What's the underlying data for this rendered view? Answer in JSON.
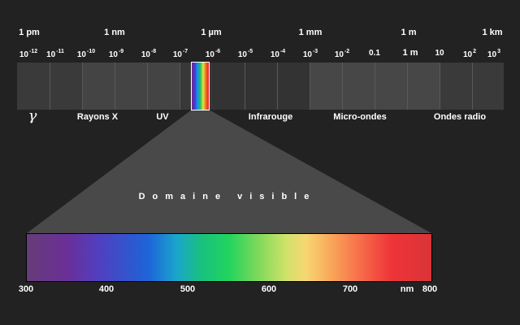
{
  "units": [
    {
      "id": "pm",
      "label": "1 pm"
    },
    {
      "id": "nm",
      "label": "1 nm"
    },
    {
      "id": "um",
      "label": "1 µm"
    },
    {
      "id": "mm",
      "label": "1 mm"
    },
    {
      "id": "m",
      "label": "1 m"
    },
    {
      "id": "km",
      "label": "1 km"
    }
  ],
  "exponents": {
    "e12": {
      "base": "10",
      "exp": "-12"
    },
    "e11": {
      "base": "10",
      "exp": "-11"
    },
    "e10": {
      "base": "10",
      "exp": "-10"
    },
    "e9": {
      "base": "10",
      "exp": "-9"
    },
    "e8": {
      "base": "10",
      "exp": "-8"
    },
    "e7": {
      "base": "10",
      "exp": "-7"
    },
    "e6": {
      "base": "10",
      "exp": "-6"
    },
    "e5": {
      "base": "10",
      "exp": "-5"
    },
    "e4": {
      "base": "10",
      "exp": "-4"
    },
    "e3": {
      "base": "10",
      "exp": "-3"
    },
    "e2": {
      "base": "10",
      "exp": "-2"
    },
    "e1": {
      "base": "0.1"
    },
    "e0": {
      "base": "1 m"
    },
    "p1": {
      "base": "10"
    },
    "p2": {
      "base": "10",
      "exp": "2"
    },
    "p3": {
      "base": "10",
      "exp": "3"
    }
  },
  "bands": {
    "gamma": "γ",
    "xray": "Rayons X",
    "uv": "UV",
    "ir": "Infrarouge",
    "micro": "Micro-ondes",
    "radio": "Ondes radio"
  },
  "visible_title": "Domaine visible",
  "ticks": {
    "t300": "300",
    "t400": "400",
    "t500": "500",
    "t600": "600",
    "t700": "700",
    "unit": "nm",
    "t800": "800"
  },
  "colors": {
    "background": "#222222",
    "band_dark": "#333333",
    "band_light": "#444444",
    "funnel": "#494949"
  }
}
